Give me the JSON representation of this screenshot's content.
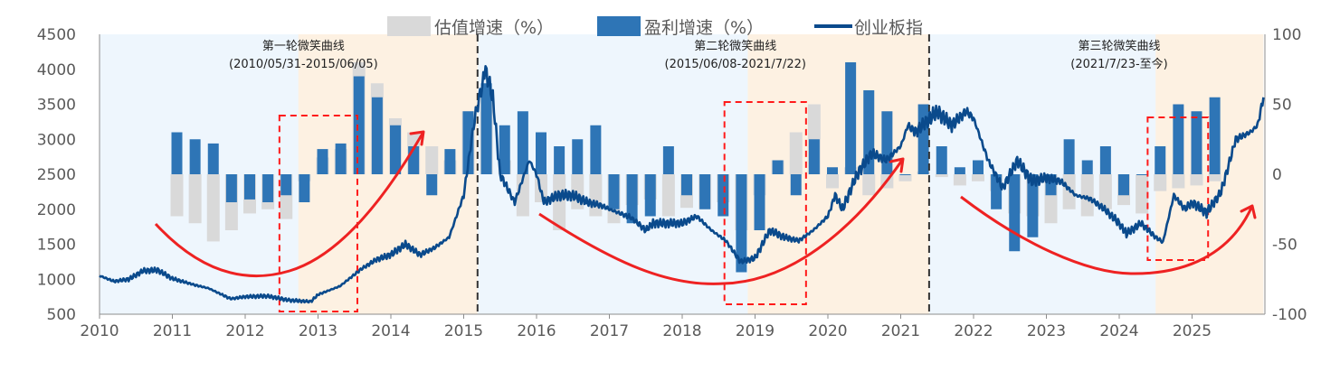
{
  "chart_data": {
    "type": "bar+line",
    "legend": {
      "valuation": "估值增速（%）",
      "earnings": "盈利增速（%）",
      "index": "创业板指",
      "placement": "top"
    },
    "x_ticks": [
      "2010",
      "2011",
      "2012",
      "2013",
      "2014",
      "2015",
      "2016",
      "2017",
      "2018",
      "2019",
      "2020",
      "2021",
      "2022",
      "2023",
      "2024",
      "2025"
    ],
    "y_left": {
      "ticks": [
        "500",
        "1000",
        "1500",
        "2000",
        "2500",
        "3000",
        "3500",
        "4000",
        "4500"
      ],
      "min": 500,
      "max": 4500
    },
    "y_right": {
      "ticks": [
        "-100",
        "-50",
        "0",
        "50",
        "100"
      ],
      "min": -100,
      "max": 100
    },
    "cycles": [
      {
        "title": "第一轮微笑曲线",
        "range": "(2010/05/31-2015/06/05)",
        "start": 2010.0,
        "end": 2015.19
      },
      {
        "title": "第二轮微笑曲线",
        "range": "(2015/06/08-2021/7/22)",
        "start": 2015.19,
        "end": 2021.39
      },
      {
        "title": "第三轮微笑曲线",
        "range": "(2021/7/23-至今)",
        "start": 2021.39,
        "end": 2025.98
      }
    ],
    "highlight_periods": [
      {
        "start": 2012.73,
        "end": 2015.19
      },
      {
        "start": 2018.9,
        "end": 2021.39
      },
      {
        "start": 2024.5,
        "end": 2025.98
      }
    ],
    "quarters": [
      2011.0,
      2011.25,
      2011.5,
      2011.75,
      2012.0,
      2012.25,
      2012.5,
      2012.75,
      2013.0,
      2013.25,
      2013.5,
      2013.75,
      2014.0,
      2014.25,
      2014.5,
      2014.75,
      2015.0,
      2015.25,
      2015.5,
      2015.75,
      2016.0,
      2016.25,
      2016.5,
      2016.75,
      2017.0,
      2017.25,
      2017.5,
      2017.75,
      2018.0,
      2018.25,
      2018.5,
      2018.75,
      2019.0,
      2019.25,
      2019.5,
      2019.75,
      2020.0,
      2020.25,
      2020.5,
      2020.75,
      2021.0,
      2021.25,
      2021.5,
      2021.75,
      2022.0,
      2022.25,
      2022.5,
      2022.75,
      2023.0,
      2023.25,
      2023.5,
      2023.75,
      2024.0,
      2024.25,
      2024.5,
      2024.75,
      2025.0,
      2025.25
    ],
    "series": [
      {
        "name": "估值增速（%）",
        "values": [
          -30,
          -35,
          -48,
          -40,
          -28,
          -25,
          -32,
          -5,
          12,
          18,
          80,
          65,
          40,
          30,
          20,
          10,
          45,
          60,
          10,
          -30,
          -20,
          -40,
          -25,
          -30,
          -35,
          -22,
          -18,
          -30,
          -24,
          -25,
          -20,
          -40,
          -15,
          10,
          30,
          50,
          -10,
          5,
          -15,
          -10,
          -5,
          2,
          -2,
          -8,
          -5,
          -12,
          -28,
          -30,
          -35,
          -25,
          -30,
          -25,
          -22,
          -28,
          -12,
          -10,
          -8,
          -5
        ]
      },
      {
        "name": "盈利增速（%）",
        "values": [
          30,
          25,
          22,
          -20,
          -18,
          -20,
          -15,
          -20,
          18,
          22,
          70,
          55,
          35,
          20,
          -15,
          18,
          45,
          65,
          35,
          45,
          30,
          20,
          25,
          35,
          -25,
          -35,
          -30,
          20,
          -15,
          -25,
          -30,
          -70,
          -40,
          10,
          -15,
          25,
          5,
          80,
          60,
          45,
          0,
          50,
          20,
          5,
          10,
          -25,
          -55,
          -45,
          -15,
          25,
          10,
          20,
          -15,
          0,
          20,
          50,
          45,
          55
        ]
      },
      {
        "name": "创业板指",
        "points": [
          [
            2010.0,
            1050
          ],
          [
            2010.2,
            970
          ],
          [
            2010.4,
            1000
          ],
          [
            2010.6,
            1120
          ],
          [
            2010.8,
            1130
          ],
          [
            2011.0,
            1010
          ],
          [
            2011.3,
            920
          ],
          [
            2011.5,
            870
          ],
          [
            2011.8,
            720
          ],
          [
            2012.0,
            750
          ],
          [
            2012.3,
            760
          ],
          [
            2012.6,
            700
          ],
          [
            2012.9,
            680
          ],
          [
            2013.0,
            780
          ],
          [
            2013.3,
            900
          ],
          [
            2013.6,
            1150
          ],
          [
            2013.8,
            1280
          ],
          [
            2014.0,
            1350
          ],
          [
            2014.2,
            1500
          ],
          [
            2014.4,
            1350
          ],
          [
            2014.6,
            1450
          ],
          [
            2014.8,
            1600
          ],
          [
            2015.0,
            2200
          ],
          [
            2015.15,
            3300
          ],
          [
            2015.3,
            3980
          ],
          [
            2015.4,
            3600
          ],
          [
            2015.5,
            2500
          ],
          [
            2015.7,
            2100
          ],
          [
            2015.9,
            2700
          ],
          [
            2016.0,
            2500
          ],
          [
            2016.1,
            2100
          ],
          [
            2016.3,
            2200
          ],
          [
            2016.5,
            2200
          ],
          [
            2016.7,
            2100
          ],
          [
            2016.9,
            2050
          ],
          [
            2017.0,
            2000
          ],
          [
            2017.3,
            1880
          ],
          [
            2017.5,
            1700
          ],
          [
            2017.6,
            1800
          ],
          [
            2017.8,
            1800
          ],
          [
            2018.0,
            1800
          ],
          [
            2018.2,
            1900
          ],
          [
            2018.4,
            1700
          ],
          [
            2018.6,
            1550
          ],
          [
            2018.8,
            1250
          ],
          [
            2019.0,
            1300
          ],
          [
            2019.2,
            1700
          ],
          [
            2019.4,
            1600
          ],
          [
            2019.6,
            1550
          ],
          [
            2019.8,
            1700
          ],
          [
            2020.0,
            1900
          ],
          [
            2020.1,
            2200
          ],
          [
            2020.2,
            2000
          ],
          [
            2020.4,
            2500
          ],
          [
            2020.6,
            2800
          ],
          [
            2020.8,
            2700
          ],
          [
            2021.0,
            2900
          ],
          [
            2021.1,
            3200
          ],
          [
            2021.2,
            3100
          ],
          [
            2021.4,
            3300
          ],
          [
            2021.5,
            3400
          ],
          [
            2021.7,
            3200
          ],
          [
            2021.9,
            3400
          ],
          [
            2022.0,
            3300
          ],
          [
            2022.2,
            2700
          ],
          [
            2022.4,
            2300
          ],
          [
            2022.6,
            2700
          ],
          [
            2022.8,
            2400
          ],
          [
            2023.0,
            2450
          ],
          [
            2023.2,
            2400
          ],
          [
            2023.4,
            2200
          ],
          [
            2023.6,
            2150
          ],
          [
            2023.8,
            2000
          ],
          [
            2024.0,
            1800
          ],
          [
            2024.1,
            1650
          ],
          [
            2024.3,
            1800
          ],
          [
            2024.5,
            1600
          ],
          [
            2024.6,
            1530
          ],
          [
            2024.75,
            2200
          ],
          [
            2024.9,
            2000
          ],
          [
            2025.0,
            2100
          ],
          [
            2025.2,
            1950
          ],
          [
            2025.4,
            2250
          ],
          [
            2025.6,
            3000
          ],
          [
            2025.8,
            3100
          ],
          [
            2025.9,
            3200
          ],
          [
            2025.98,
            3600
          ]
        ]
      }
    ]
  }
}
